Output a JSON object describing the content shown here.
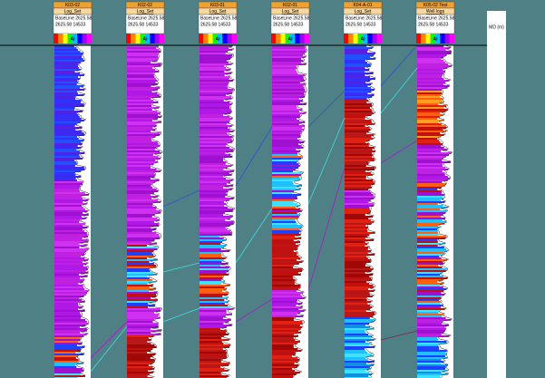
{
  "wells": [
    {
      "name": "K03-02",
      "set": "Log_Set",
      "baseline": "BaseLine 2625.58",
      "range": "2625.58   14533",
      "log": "AI"
    },
    {
      "name": "K02-02",
      "set": "Log_Set",
      "baseline": "BaseLine 2625.58",
      "range": "2625.58   14533",
      "log": "AI"
    },
    {
      "name": "K03-01",
      "set": "Log_Set",
      "baseline": "BaseLine 2625.58",
      "range": "2625.58   14533",
      "log": "AI"
    },
    {
      "name": "K02-01",
      "set": "Log_Set",
      "baseline": "BaseLine 2625.58",
      "range": "2625.58   14533",
      "log": "AI"
    },
    {
      "name": "K04-A-01",
      "set": "Log_Set",
      "baseline": "BaseLine 2625.58",
      "range": "2625.58   14533",
      "log": "AI"
    },
    {
      "name": "K05-02 Test",
      "set": "Well logs",
      "baseline": "BaseLine 2625.58",
      "range": "2625.58   14533",
      "log": "AI"
    }
  ],
  "depth_track": {
    "header": "MD (m)"
  }
}
